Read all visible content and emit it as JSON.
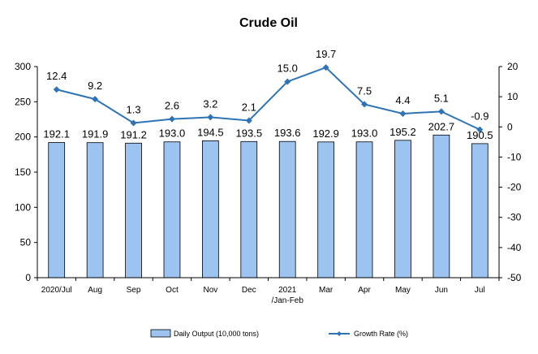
{
  "chart_data": {
    "type": "bar",
    "title": "Crude Oil",
    "categories": [
      [
        "2020/Jul"
      ],
      [
        "Aug"
      ],
      [
        "Sep"
      ],
      [
        "Oct"
      ],
      [
        "Nov"
      ],
      [
        "Dec"
      ],
      [
        "2021",
        "/Jan-Feb"
      ],
      [
        "Mar"
      ],
      [
        "Apr"
      ],
      [
        "May"
      ],
      [
        "Jun"
      ],
      [
        "Jul"
      ]
    ],
    "series": [
      {
        "name": "Daily Output (10,000 tons)",
        "type": "bar",
        "axis": "left",
        "color": "#9dc3f0",
        "values": [
          192.1,
          191.9,
          191.2,
          193.0,
          194.5,
          193.5,
          193.6,
          192.9,
          193.0,
          195.2,
          202.7,
          190.5
        ],
        "labels": [
          "192.1",
          "191.9",
          "191.2",
          "193.0",
          "194.5",
          "193.5",
          "193.6",
          "192.9",
          "193.0",
          "195.2",
          "202.7",
          "190.5"
        ]
      },
      {
        "name": "Growth Rate (%)",
        "type": "line",
        "axis": "right",
        "color": "#2e74b5",
        "values": [
          12.4,
          9.2,
          1.3,
          2.6,
          3.2,
          2.1,
          15.0,
          19.7,
          7.5,
          4.4,
          5.1,
          -0.9
        ],
        "labels": [
          "12.4",
          "9.2",
          "1.3",
          "2.6",
          "3.2",
          "2.1",
          "15.0",
          "19.7",
          "7.5",
          "4.4",
          "5.1",
          "-0.9"
        ]
      }
    ],
    "y_left": {
      "range": [
        0,
        300
      ],
      "ticks": [
        "0",
        "50",
        "100",
        "150",
        "200",
        "250",
        "300"
      ]
    },
    "y_right": {
      "range": [
        -50,
        20
      ],
      "ticks": [
        "-50",
        "-40",
        "-30",
        "-20",
        "-10",
        "0",
        "10",
        "20"
      ]
    },
    "grid": false,
    "legend": "bottom"
  }
}
